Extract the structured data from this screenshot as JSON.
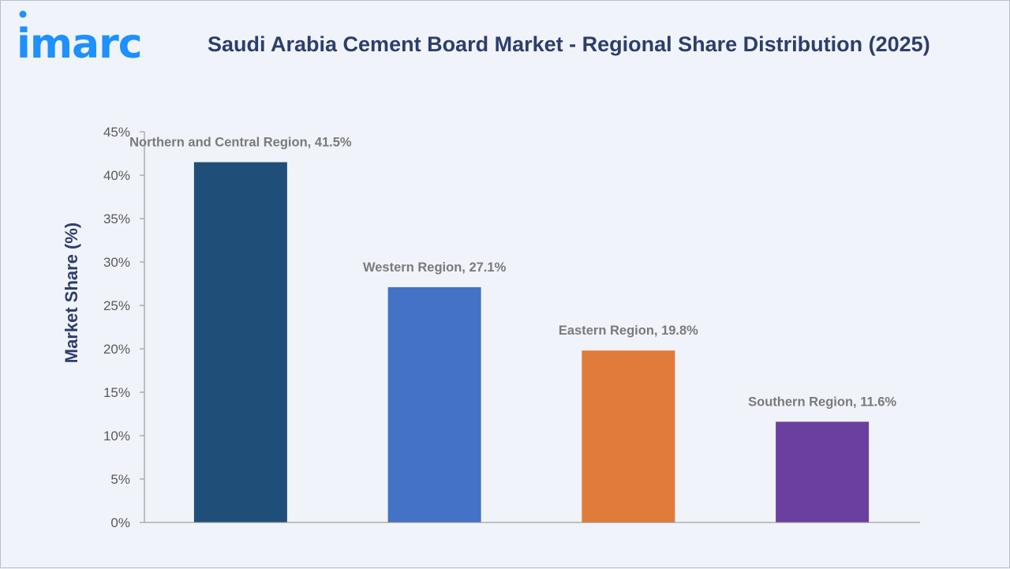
{
  "brand": {
    "logo_text": "imarc",
    "logo_color": "#1e90ff"
  },
  "page": {
    "title": "Saudi Arabia Cement Board Market - Regional Share Distribution (2025)"
  },
  "chart_data": {
    "type": "bar",
    "title": "Saudi Arabia Cement Board Market - Regional Share Distribution (2025)",
    "xlabel": "",
    "ylabel": "Market Share (%)",
    "ylim": [
      0,
      45
    ],
    "y_ticks": [
      0,
      5,
      10,
      15,
      20,
      25,
      30,
      35,
      40,
      45
    ],
    "y_tick_labels": [
      "0%",
      "5%",
      "10%",
      "15%",
      "20%",
      "25%",
      "30%",
      "35%",
      "40%",
      "45%"
    ],
    "grid": false,
    "legend": "none",
    "categories": [
      "Northern and Central Region",
      "Western Region",
      "Eastern Region",
      "Southern Region"
    ],
    "values": [
      41.5,
      27.1,
      19.8,
      11.6
    ],
    "data_labels": [
      "Northern and Central Region, 41.5%",
      "Western Region, 27.1%",
      "Eastern Region, 19.8%",
      "Southern Region, 11.6%"
    ],
    "colors": [
      "#1f4e79",
      "#4472c4",
      "#e07b39",
      "#6b3fa0"
    ]
  }
}
